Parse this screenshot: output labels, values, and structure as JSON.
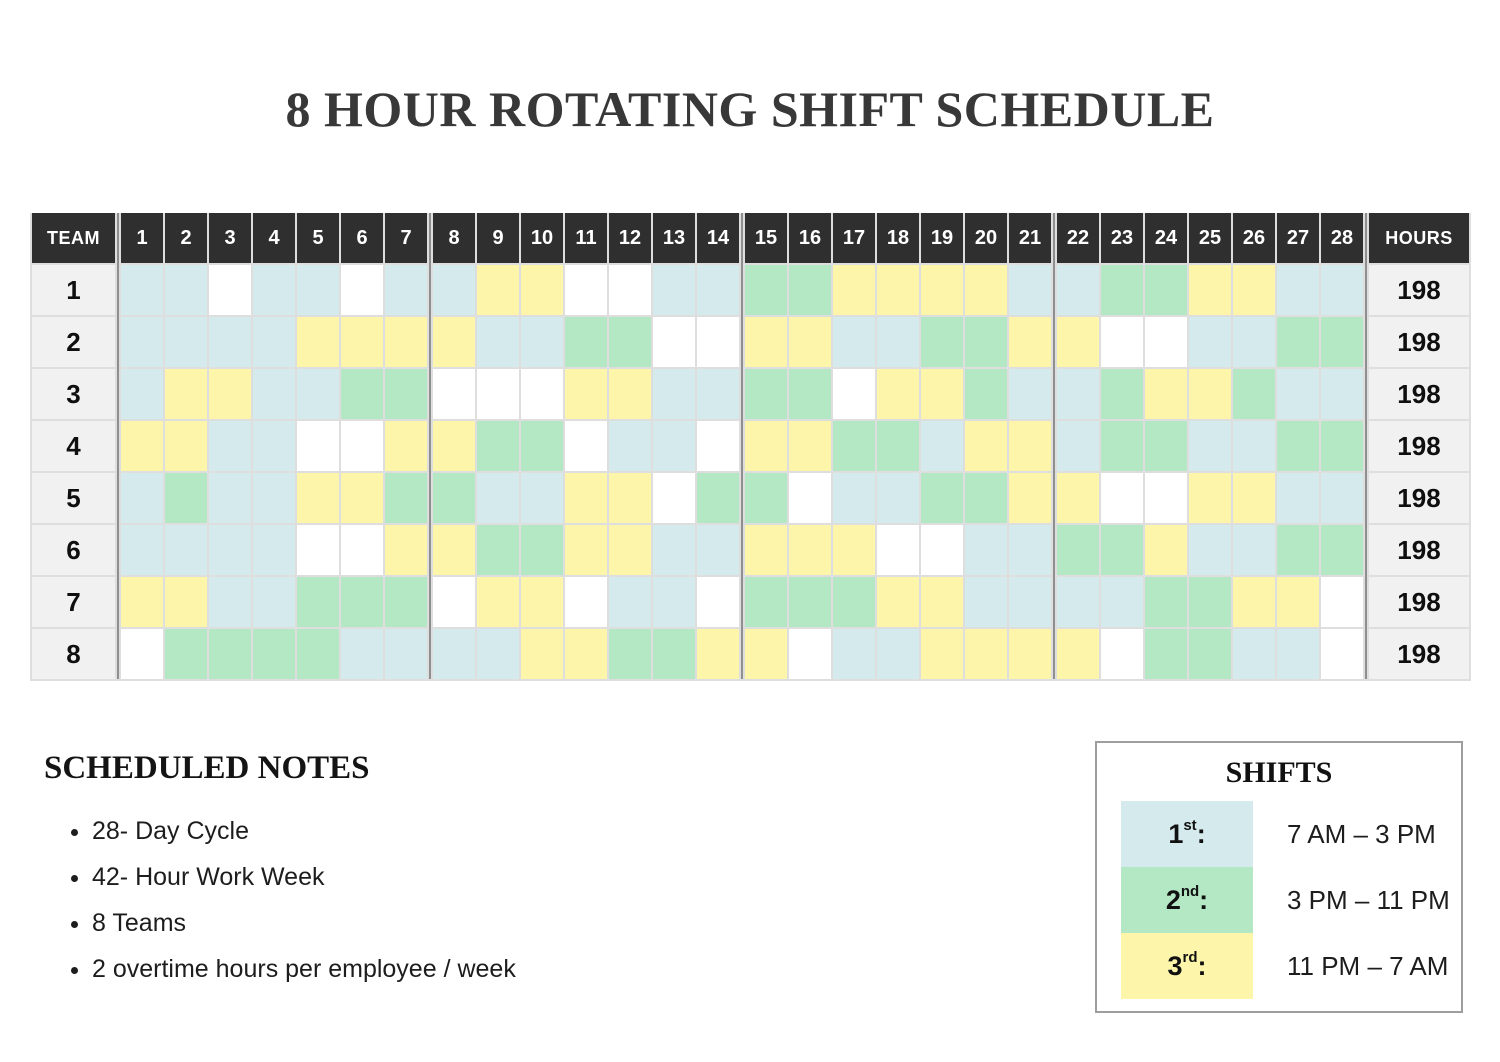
{
  "title": "8 HOUR ROTATING SHIFT SCHEDULE",
  "colors": {
    "shifts": {
      "1": "#d5eaed",
      "2": "#b4e8c5",
      "3": "#fcf5aa",
      "0": "#ffffff"
    },
    "header_bg": "#2f2f2f",
    "header_text": "#ffffff",
    "label_bg": "#f1f1f2",
    "grid_line": "#dedede",
    "week_separator": "#8f8f8f"
  },
  "table": {
    "team_header": "TEAM",
    "hours_header": "HOURS",
    "day_headers": [
      "1",
      "2",
      "3",
      "4",
      "5",
      "6",
      "7",
      "8",
      "9",
      "10",
      "11",
      "12",
      "13",
      "14",
      "15",
      "16",
      "17",
      "18",
      "19",
      "20",
      "21",
      "22",
      "23",
      "24",
      "25",
      "26",
      "27",
      "28"
    ],
    "rows": [
      {
        "team": "1",
        "hours": "198",
        "shifts": [
          "1",
          "1",
          "0",
          "1",
          "1",
          "0",
          "1",
          "1",
          "3",
          "3",
          "0",
          "0",
          "1",
          "1",
          "2",
          "2",
          "3",
          "3",
          "3",
          "3",
          "1",
          "1",
          "2",
          "2",
          "3",
          "3",
          "1",
          "1"
        ]
      },
      {
        "team": "2",
        "hours": "198",
        "shifts": [
          "1",
          "1",
          "1",
          "1",
          "3",
          "3",
          "3",
          "3",
          "1",
          "1",
          "2",
          "2",
          "0",
          "0",
          "3",
          "3",
          "1",
          "1",
          "2",
          "2",
          "3",
          "3",
          "0",
          "0",
          "1",
          "1",
          "2",
          "2"
        ]
      },
      {
        "team": "3",
        "hours": "198",
        "shifts": [
          "1",
          "3",
          "3",
          "1",
          "1",
          "2",
          "2",
          "0",
          "0",
          "0",
          "3",
          "3",
          "1",
          "1",
          "2",
          "2",
          "0",
          "3",
          "3",
          "2",
          "1",
          "1",
          "2",
          "3",
          "3",
          "2",
          "1",
          "1"
        ]
      },
      {
        "team": "4",
        "hours": "198",
        "shifts": [
          "3",
          "3",
          "1",
          "1",
          "0",
          "0",
          "3",
          "3",
          "2",
          "2",
          "0",
          "1",
          "1",
          "0",
          "3",
          "3",
          "2",
          "2",
          "1",
          "3",
          "3",
          "1",
          "2",
          "2",
          "1",
          "1",
          "2",
          "2"
        ]
      },
      {
        "team": "5",
        "hours": "198",
        "shifts": [
          "1",
          "2",
          "1",
          "1",
          "3",
          "3",
          "2",
          "2",
          "1",
          "1",
          "3",
          "3",
          "0",
          "2",
          "2",
          "0",
          "1",
          "1",
          "2",
          "2",
          "3",
          "3",
          "0",
          "0",
          "3",
          "3",
          "1",
          "1"
        ]
      },
      {
        "team": "6",
        "hours": "198",
        "shifts": [
          "1",
          "1",
          "1",
          "1",
          "0",
          "0",
          "3",
          "3",
          "2",
          "2",
          "3",
          "3",
          "1",
          "1",
          "3",
          "3",
          "3",
          "0",
          "0",
          "1",
          "1",
          "2",
          "2",
          "3",
          "1",
          "1",
          "2",
          "2"
        ]
      },
      {
        "team": "7",
        "hours": "198",
        "shifts": [
          "3",
          "3",
          "1",
          "1",
          "2",
          "2",
          "2",
          "0",
          "3",
          "3",
          "0",
          "1",
          "1",
          "0",
          "2",
          "2",
          "2",
          "3",
          "3",
          "1",
          "1",
          "1",
          "1",
          "2",
          "2",
          "3",
          "3",
          "0"
        ]
      },
      {
        "team": "8",
        "hours": "198",
        "shifts": [
          "0",
          "2",
          "2",
          "2",
          "2",
          "1",
          "1",
          "1",
          "1",
          "3",
          "3",
          "2",
          "2",
          "3",
          "3",
          "0",
          "1",
          "1",
          "3",
          "3",
          "3",
          "3",
          "0",
          "2",
          "2",
          "1",
          "1",
          "0"
        ]
      }
    ]
  },
  "notes": {
    "title": "SCHEDULED NOTES",
    "items": [
      "28- Day Cycle",
      "42- Hour Work Week",
      "8 Teams",
      "2 overtime hours per employee / week"
    ]
  },
  "legend": {
    "title": "SHIFTS",
    "items": [
      {
        "number": "1",
        "ordinal": "st",
        "colon": ":",
        "time": "7 AM – 3 PM",
        "shift": "1"
      },
      {
        "number": "2",
        "ordinal": "nd",
        "colon": ":",
        "time": "3 PM – 11 PM",
        "shift": "2"
      },
      {
        "number": "3",
        "ordinal": "rd",
        "colon": ":",
        "time": "11 PM – 7 AM",
        "shift": "3"
      }
    ]
  }
}
